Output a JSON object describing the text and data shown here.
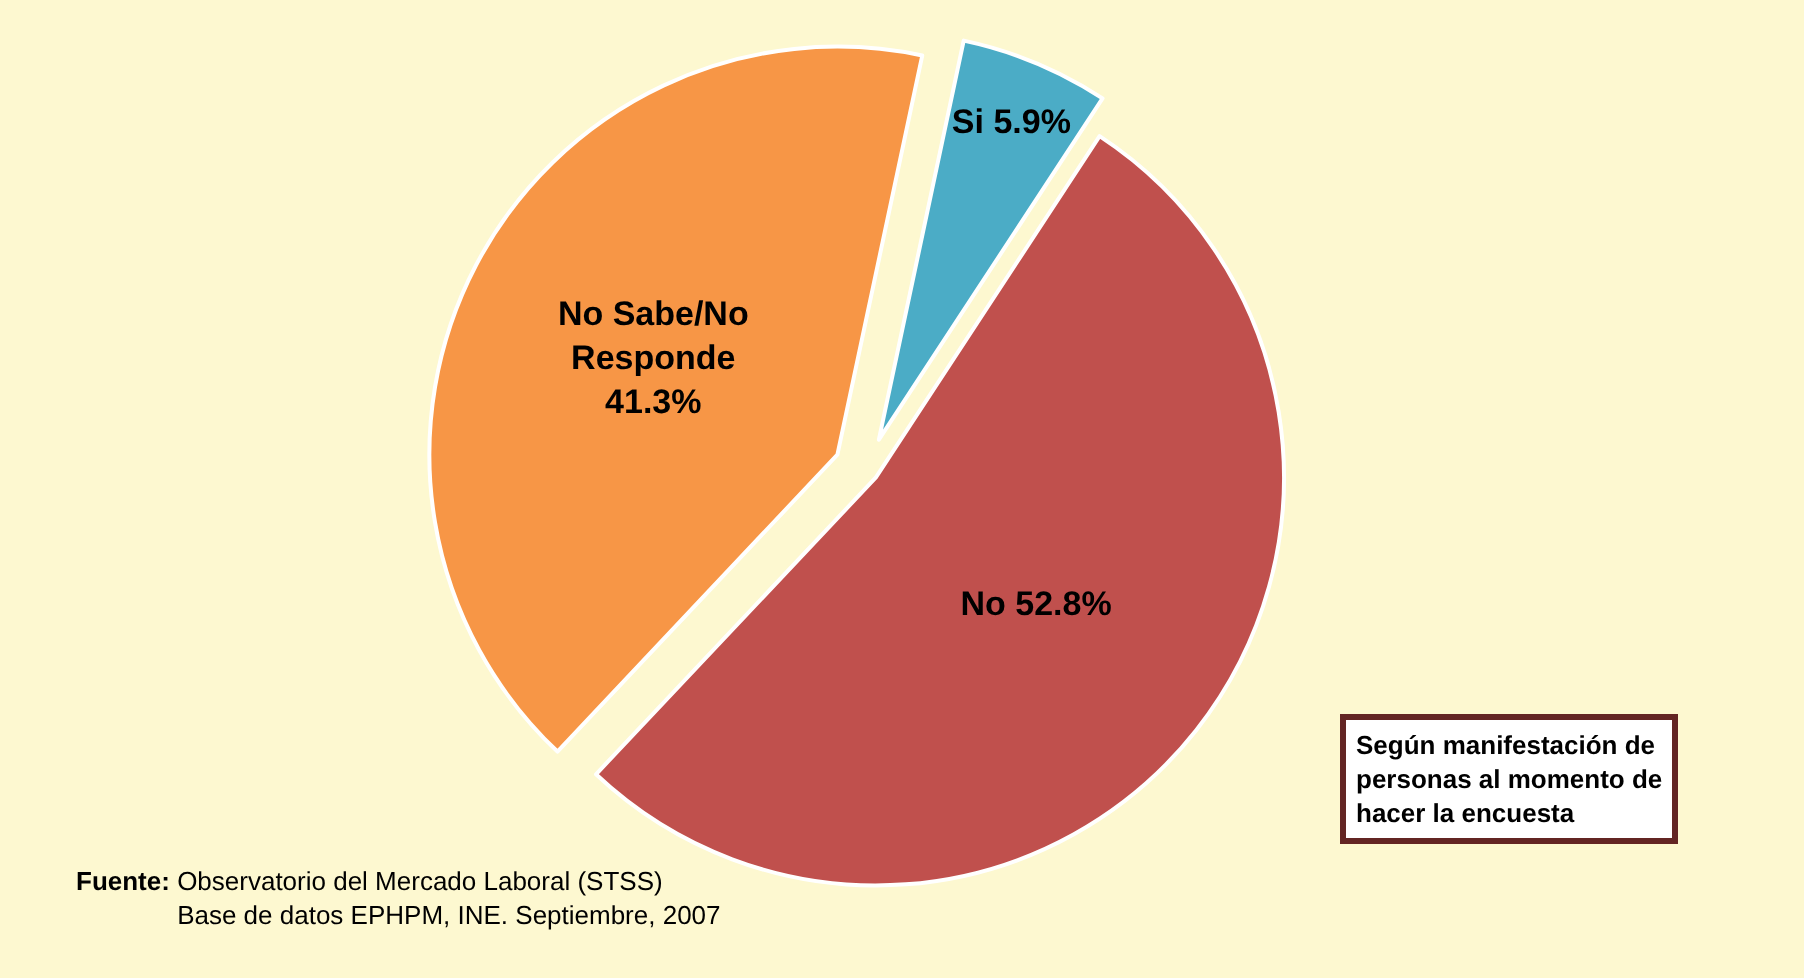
{
  "chart_data": {
    "type": "pie",
    "categories": [
      "Si",
      "No",
      "No Sabe/No Responde"
    ],
    "values": [
      5.9,
      52.8,
      41.3
    ],
    "colors": [
      "#4bacc6",
      "#c0504d",
      "#f79646"
    ],
    "value_labels": [
      "5.9%",
      "52.8%",
      "41.3%"
    ],
    "legend": false,
    "annotations": [
      "Fuente: Observatorio del Mercado Laboral (STSS)\nBase de datos EPHPM, INE. Septiembre, 2007",
      "Según manifestación de\npersonas al momento de\nhacer la encuesta"
    ]
  }
}
